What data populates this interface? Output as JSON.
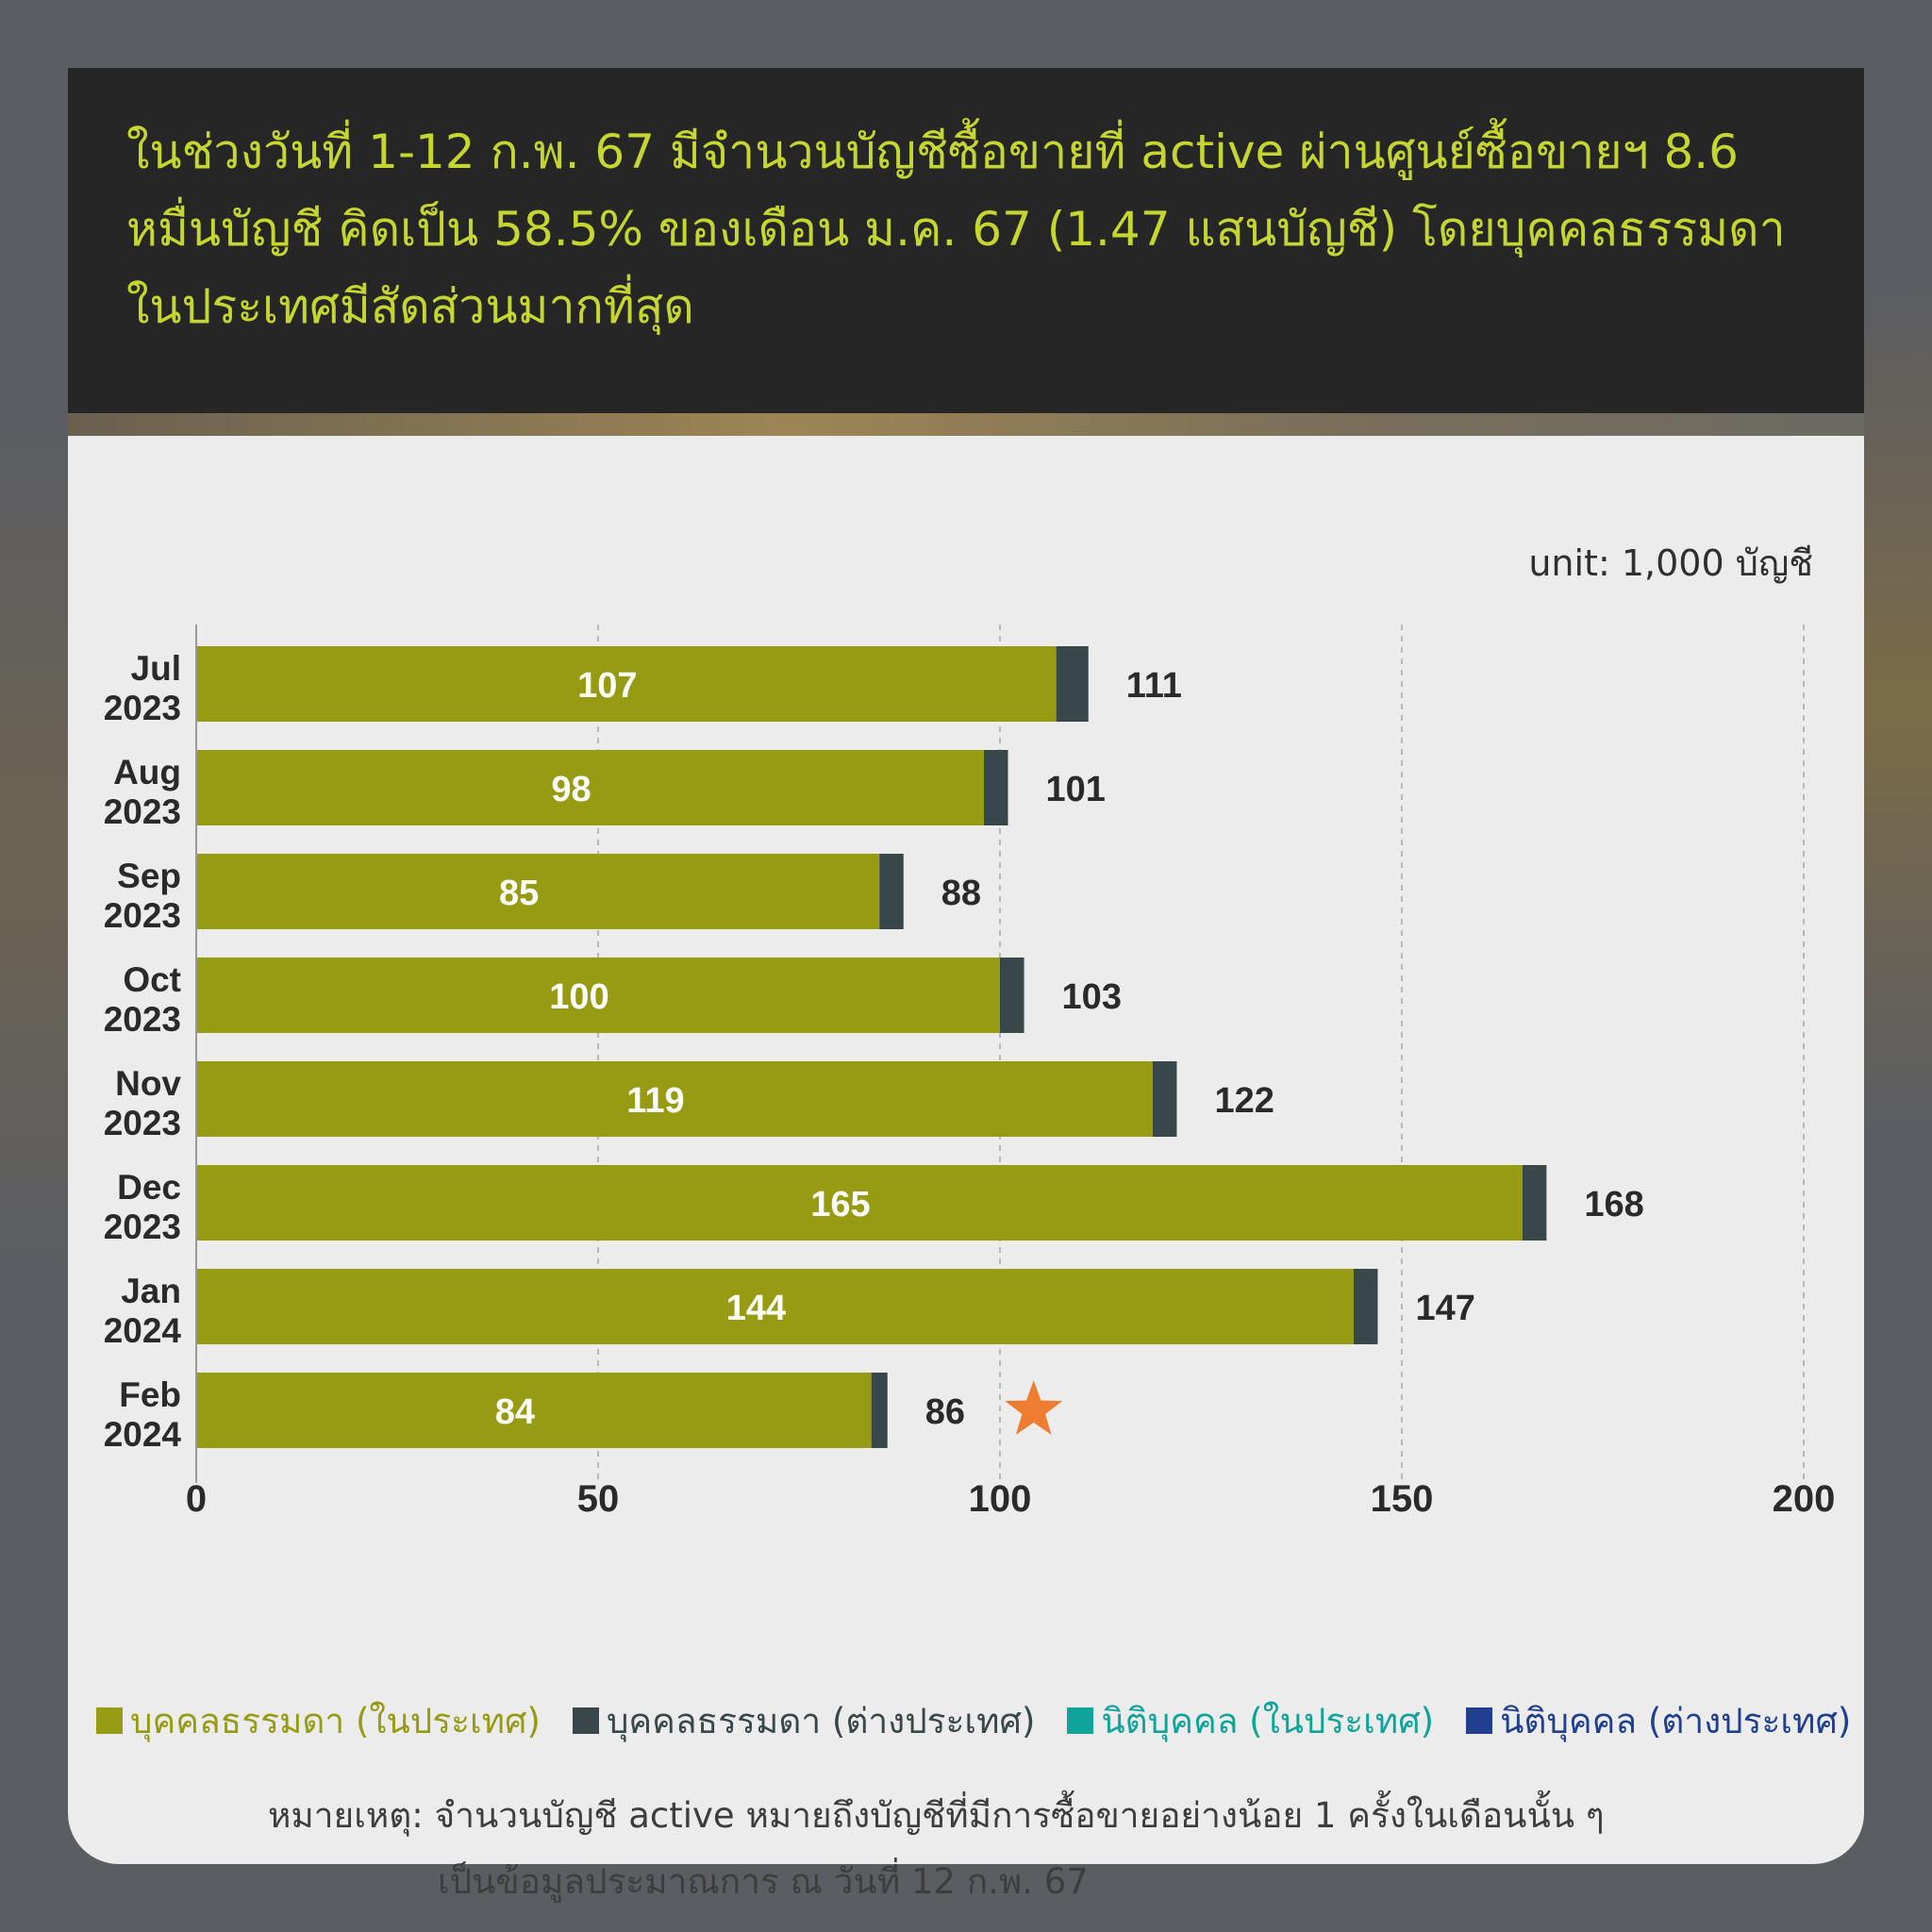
{
  "title": "ในช่วงวันที่ 1-12 ก.พ. 67 มีจำนวนบัญชีซื้อขายที่ active ผ่านศูนย์ซื้อขายฯ 8.6 หมื่นบัญชี คิดเป็น 58.5% ของเดือน ม.ค. 67 (1.47 แสนบัญชี) โดยบุคคลธรรมดาในประเทศมีสัดส่วนมากที่สุด",
  "unit_label": "unit: 1,000 บัญชี",
  "colors": {
    "domestic_individual": "#979b12",
    "foreign_individual": "#37474a",
    "domestic_juristic": "#0fa39a",
    "foreign_juristic": "#1f3f8f",
    "star": "#ee7d31",
    "title": "#c6d630"
  },
  "legend": [
    {
      "label": "บุคคลธรรมดา (ในประเทศ)",
      "color": "#979b12"
    },
    {
      "label": "บุคคลธรรมดา (ต่างประเทศ)",
      "color": "#37474a"
    },
    {
      "label": "นิติบุคคล (ในประเทศ)",
      "color": "#0fa39a"
    },
    {
      "label": "นิติบุคคล (ต่างประเทศ)",
      "color": "#1f3f8f"
    }
  ],
  "note": {
    "line1": "หมายเหตุ: จำนวนบัญชี active หมายถึงบัญชีที่มีการซื้อขายอย่างน้อย 1 ครั้งในเดือนนั้น ๆ",
    "line2": "เป็นข้อมูลประมาณการ ณ วันที่ 12 ก.พ. 67"
  },
  "chart_data": {
    "type": "bar",
    "orientation": "horizontal",
    "stacked": true,
    "categories": [
      [
        "Jul",
        "2023"
      ],
      [
        "Aug",
        "2023"
      ],
      [
        "Sep",
        "2023"
      ],
      [
        "Oct",
        "2023"
      ],
      [
        "Nov",
        "2023"
      ],
      [
        "Dec",
        "2023"
      ],
      [
        "Jan",
        "2024"
      ],
      [
        "Feb",
        "2024"
      ]
    ],
    "series": [
      {
        "name": "บุคคลธรรมดา (ในประเทศ)",
        "values": [
          107,
          98,
          85,
          100,
          119,
          165,
          144,
          84
        ]
      },
      {
        "name": "บุคคลธรรมดา (ต่างประเทศ)",
        "values": [
          4,
          3,
          3,
          3,
          3,
          3,
          3,
          2
        ]
      }
    ],
    "inner_labels": [
      "107",
      "98",
      "85",
      "100",
      "119",
      "165",
      "144",
      "84"
    ],
    "total_labels": [
      "111",
      "101",
      "88",
      "103",
      "122",
      "168",
      "147",
      "86"
    ],
    "xlim": [
      0,
      200
    ],
    "xticks": [
      "0",
      "50",
      "100",
      "150",
      "200"
    ],
    "grid": "vertical dashed",
    "highlight": {
      "category_index": 7,
      "marker": "star"
    }
  }
}
